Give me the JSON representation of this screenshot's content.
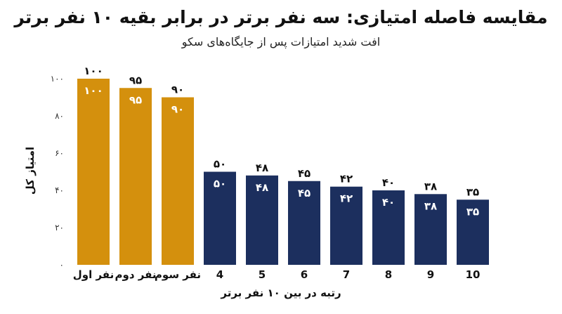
{
  "chart_data": {
    "type": "bar",
    "title": "مقایسه فاصله امتیازی: سه نفر برتر در برابر بقیه ۱۰ نفر برتر",
    "subtitle": "افت شدید امتیازات پس از جایگاه‌های سکو",
    "xlabel": "رتبه در بین ۱۰ نفر برتر",
    "ylabel": "امتیاز کل",
    "categories": [
      "نفر اول",
      "نفر دوم",
      "نفر سوم",
      "4",
      "5",
      "6",
      "7",
      "8",
      "9",
      "10"
    ],
    "values": [
      100,
      95,
      90,
      50,
      48,
      45,
      42,
      40,
      38,
      35
    ],
    "value_labels": [
      "۱۰۰",
      "۹۵",
      "۹۰",
      "۵۰",
      "۴۸",
      "۴۵",
      "۴۲",
      "۴۰",
      "۳۸",
      "۳۵"
    ],
    "colors": [
      "#D4900D",
      "#D4900D",
      "#D4900D",
      "#1C2F5E",
      "#1C2F5E",
      "#1C2F5E",
      "#1C2F5E",
      "#1C2F5E",
      "#1C2F5E",
      "#1C2F5E"
    ],
    "yticks": [
      0,
      20,
      40,
      60,
      80,
      100
    ],
    "ytick_labels": [
      "۰",
      "۲۰",
      "۴۰",
      "۶۰",
      "۸۰",
      "۱۰۰"
    ],
    "ylim": [
      0,
      100
    ],
    "grid": false,
    "legend": "none"
  }
}
